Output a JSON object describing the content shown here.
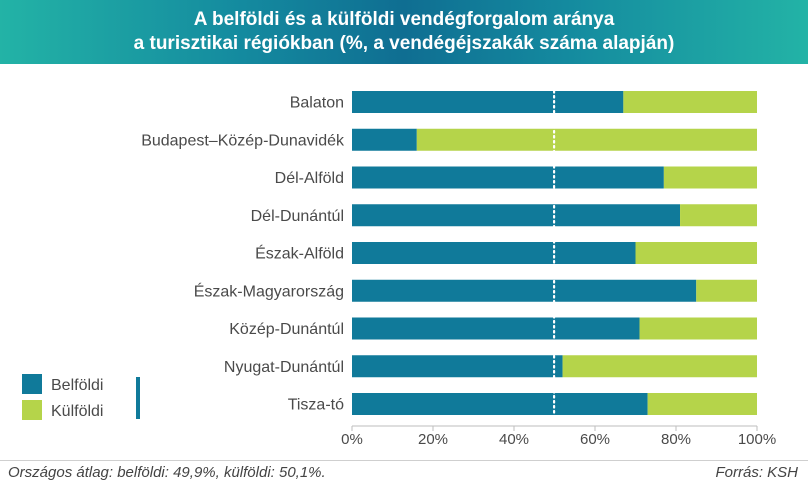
{
  "title": {
    "line1": "A belföldi és a külföldi vendégforgalom aránya",
    "line2": "a turisztikai régiókban (%, a vendégéjszakák száma alapján)"
  },
  "colors": {
    "belfoldi": "#107a9a",
    "kulfoldi": "#b5d44a",
    "average_line": "#ffffff",
    "grid": "#d9d9d9",
    "text": "#4a4a4a"
  },
  "chart_data": {
    "type": "bar",
    "orientation": "horizontal",
    "stacked": true,
    "categories": [
      "Balaton",
      "Budapest–Közép-Dunavidék",
      "Dél-Alföld",
      "Dél-Dunántúl",
      "Észak-Alföld",
      "Észak-Magyarország",
      "Közép-Dunántúl",
      "Nyugat-Dunántúl",
      "Tisza-tó"
    ],
    "series": [
      {
        "name": "Belföldi",
        "color": "#107a9a",
        "values": [
          67,
          16,
          77,
          81,
          70,
          85,
          71,
          52,
          73
        ]
      },
      {
        "name": "Külföldi",
        "color": "#b5d44a",
        "values": [
          33,
          84,
          23,
          19,
          30,
          15,
          29,
          48,
          27
        ]
      }
    ],
    "xlim": [
      0,
      100
    ],
    "xticks": [
      "0%",
      "20%",
      "40%",
      "60%",
      "80%",
      "100%"
    ],
    "reference_line": 49.9,
    "legend_position": "bottom-left"
  },
  "footer": {
    "note": "Országos átlag: belföldi: 49,9%, külföldi: 50,1%.",
    "source": "Forrás: KSH"
  }
}
